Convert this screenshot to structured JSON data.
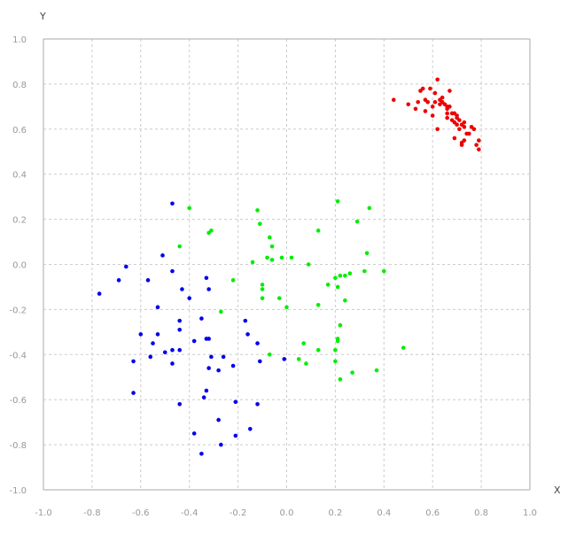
{
  "chart_data": {
    "type": "scatter",
    "title": "",
    "xlabel": "X",
    "ylabel": "Y",
    "xlim": [
      -1.0,
      1.0
    ],
    "ylim": [
      -1.0,
      1.0
    ],
    "xticks": [
      "-1.0",
      "-0.8",
      "-0.6",
      "-0.4",
      "-0.2",
      "0.0",
      "0.2",
      "0.4",
      "0.6",
      "0.8",
      "1.0"
    ],
    "yticks": [
      "-1.0",
      "-0.8",
      "-0.6",
      "-0.4",
      "-0.2",
      "0.0",
      "0.2",
      "0.4",
      "0.6",
      "0.8",
      "1.0"
    ],
    "grid": true,
    "legend": "none",
    "series": [
      {
        "color": "#0000ee",
        "points": [
          [
            -0.47,
            0.27
          ],
          [
            -0.66,
            -0.01
          ],
          [
            -0.69,
            -0.07
          ],
          [
            -0.77,
            -0.13
          ],
          [
            -0.57,
            -0.07
          ],
          [
            -0.51,
            0.04
          ],
          [
            -0.47,
            -0.03
          ],
          [
            -0.43,
            -0.11
          ],
          [
            -0.4,
            -0.15
          ],
          [
            -0.53,
            -0.19
          ],
          [
            -0.44,
            -0.25
          ],
          [
            -0.44,
            -0.29
          ],
          [
            -0.53,
            -0.31
          ],
          [
            -0.6,
            -0.31
          ],
          [
            -0.55,
            -0.35
          ],
          [
            -0.5,
            -0.39
          ],
          [
            -0.47,
            -0.38
          ],
          [
            -0.44,
            -0.38
          ],
          [
            -0.56,
            -0.41
          ],
          [
            -0.63,
            -0.43
          ],
          [
            -0.47,
            -0.44
          ],
          [
            -0.63,
            -0.57
          ],
          [
            -0.44,
            -0.62
          ],
          [
            -0.33,
            -0.06
          ],
          [
            -0.32,
            -0.11
          ],
          [
            -0.35,
            -0.24
          ],
          [
            -0.38,
            -0.34
          ],
          [
            -0.33,
            -0.33
          ],
          [
            -0.32,
            -0.33
          ],
          [
            -0.31,
            -0.41
          ],
          [
            -0.26,
            -0.41
          ],
          [
            -0.32,
            -0.46
          ],
          [
            -0.28,
            -0.47
          ],
          [
            -0.22,
            -0.45
          ],
          [
            -0.33,
            -0.56
          ],
          [
            -0.34,
            -0.59
          ],
          [
            -0.21,
            -0.61
          ],
          [
            -0.28,
            -0.69
          ],
          [
            -0.38,
            -0.75
          ],
          [
            -0.21,
            -0.76
          ],
          [
            -0.27,
            -0.8
          ],
          [
            -0.35,
            -0.84
          ],
          [
            -0.17,
            -0.25
          ],
          [
            -0.16,
            -0.31
          ],
          [
            -0.12,
            -0.35
          ],
          [
            -0.11,
            -0.43
          ],
          [
            -0.15,
            -0.73
          ],
          [
            -0.12,
            -0.62
          ],
          [
            -0.01,
            -0.42
          ]
        ]
      },
      {
        "color": "#00ee00",
        "points": [
          [
            -0.4,
            0.25
          ],
          [
            -0.44,
            0.08
          ],
          [
            -0.32,
            0.14
          ],
          [
            -0.31,
            0.15
          ],
          [
            -0.12,
            0.24
          ],
          [
            -0.11,
            0.18
          ],
          [
            -0.07,
            0.12
          ],
          [
            -0.06,
            0.08
          ],
          [
            -0.14,
            0.01
          ],
          [
            -0.08,
            0.03
          ],
          [
            -0.06,
            0.02
          ],
          [
            -0.02,
            0.03
          ],
          [
            0.02,
            0.03
          ],
          [
            -0.22,
            -0.07
          ],
          [
            -0.1,
            -0.09
          ],
          [
            -0.1,
            -0.11
          ],
          [
            -0.1,
            -0.15
          ],
          [
            -0.03,
            -0.15
          ],
          [
            0.0,
            -0.19
          ],
          [
            -0.27,
            -0.21
          ],
          [
            -0.07,
            -0.4
          ],
          [
            0.09,
            0.0
          ],
          [
            0.13,
            0.15
          ],
          [
            0.21,
            0.28
          ],
          [
            0.29,
            0.19
          ],
          [
            0.34,
            0.25
          ],
          [
            0.33,
            0.05
          ],
          [
            0.4,
            -0.03
          ],
          [
            0.32,
            -0.03
          ],
          [
            0.26,
            -0.04
          ],
          [
            0.24,
            -0.05
          ],
          [
            0.22,
            -0.05
          ],
          [
            0.2,
            -0.06
          ],
          [
            0.17,
            -0.09
          ],
          [
            0.21,
            -0.1
          ],
          [
            0.24,
            -0.16
          ],
          [
            0.13,
            -0.18
          ],
          [
            0.22,
            -0.27
          ],
          [
            0.21,
            -0.33
          ],
          [
            0.21,
            -0.34
          ],
          [
            0.07,
            -0.35
          ],
          [
            0.13,
            -0.38
          ],
          [
            0.2,
            -0.38
          ],
          [
            0.2,
            -0.43
          ],
          [
            0.05,
            -0.42
          ],
          [
            0.08,
            -0.44
          ],
          [
            0.27,
            -0.48
          ],
          [
            0.37,
            -0.47
          ],
          [
            0.22,
            -0.51
          ],
          [
            0.48,
            -0.37
          ]
        ]
      },
      {
        "color": "#ee0000",
        "points": [
          [
            0.44,
            0.73
          ],
          [
            0.5,
            0.71
          ],
          [
            0.53,
            0.69
          ],
          [
            0.55,
            0.77
          ],
          [
            0.56,
            0.78
          ],
          [
            0.57,
            0.73
          ],
          [
            0.58,
            0.72
          ],
          [
            0.59,
            0.78
          ],
          [
            0.6,
            0.7
          ],
          [
            0.6,
            0.66
          ],
          [
            0.61,
            0.72
          ],
          [
            0.62,
            0.82
          ],
          [
            0.63,
            0.73
          ],
          [
            0.63,
            0.71
          ],
          [
            0.64,
            0.74
          ],
          [
            0.64,
            0.72
          ],
          [
            0.65,
            0.71
          ],
          [
            0.66,
            0.69
          ],
          [
            0.66,
            0.67
          ],
          [
            0.66,
            0.65
          ],
          [
            0.67,
            0.7
          ],
          [
            0.67,
            0.77
          ],
          [
            0.68,
            0.67
          ],
          [
            0.68,
            0.64
          ],
          [
            0.69,
            0.67
          ],
          [
            0.69,
            0.63
          ],
          [
            0.7,
            0.66
          ],
          [
            0.7,
            0.62
          ],
          [
            0.71,
            0.64
          ],
          [
            0.71,
            0.6
          ],
          [
            0.72,
            0.62
          ],
          [
            0.73,
            0.63
          ],
          [
            0.73,
            0.61
          ],
          [
            0.74,
            0.58
          ],
          [
            0.76,
            0.61
          ],
          [
            0.77,
            0.6
          ],
          [
            0.79,
            0.55
          ],
          [
            0.79,
            0.51
          ],
          [
            0.72,
            0.54
          ],
          [
            0.73,
            0.55
          ],
          [
            0.72,
            0.53
          ],
          [
            0.69,
            0.56
          ],
          [
            0.62,
            0.6
          ],
          [
            0.57,
            0.68
          ],
          [
            0.54,
            0.72
          ],
          [
            0.66,
            0.7
          ],
          [
            0.61,
            0.76
          ],
          [
            0.7,
            0.65
          ],
          [
            0.75,
            0.58
          ],
          [
            0.78,
            0.53
          ]
        ]
      }
    ]
  }
}
